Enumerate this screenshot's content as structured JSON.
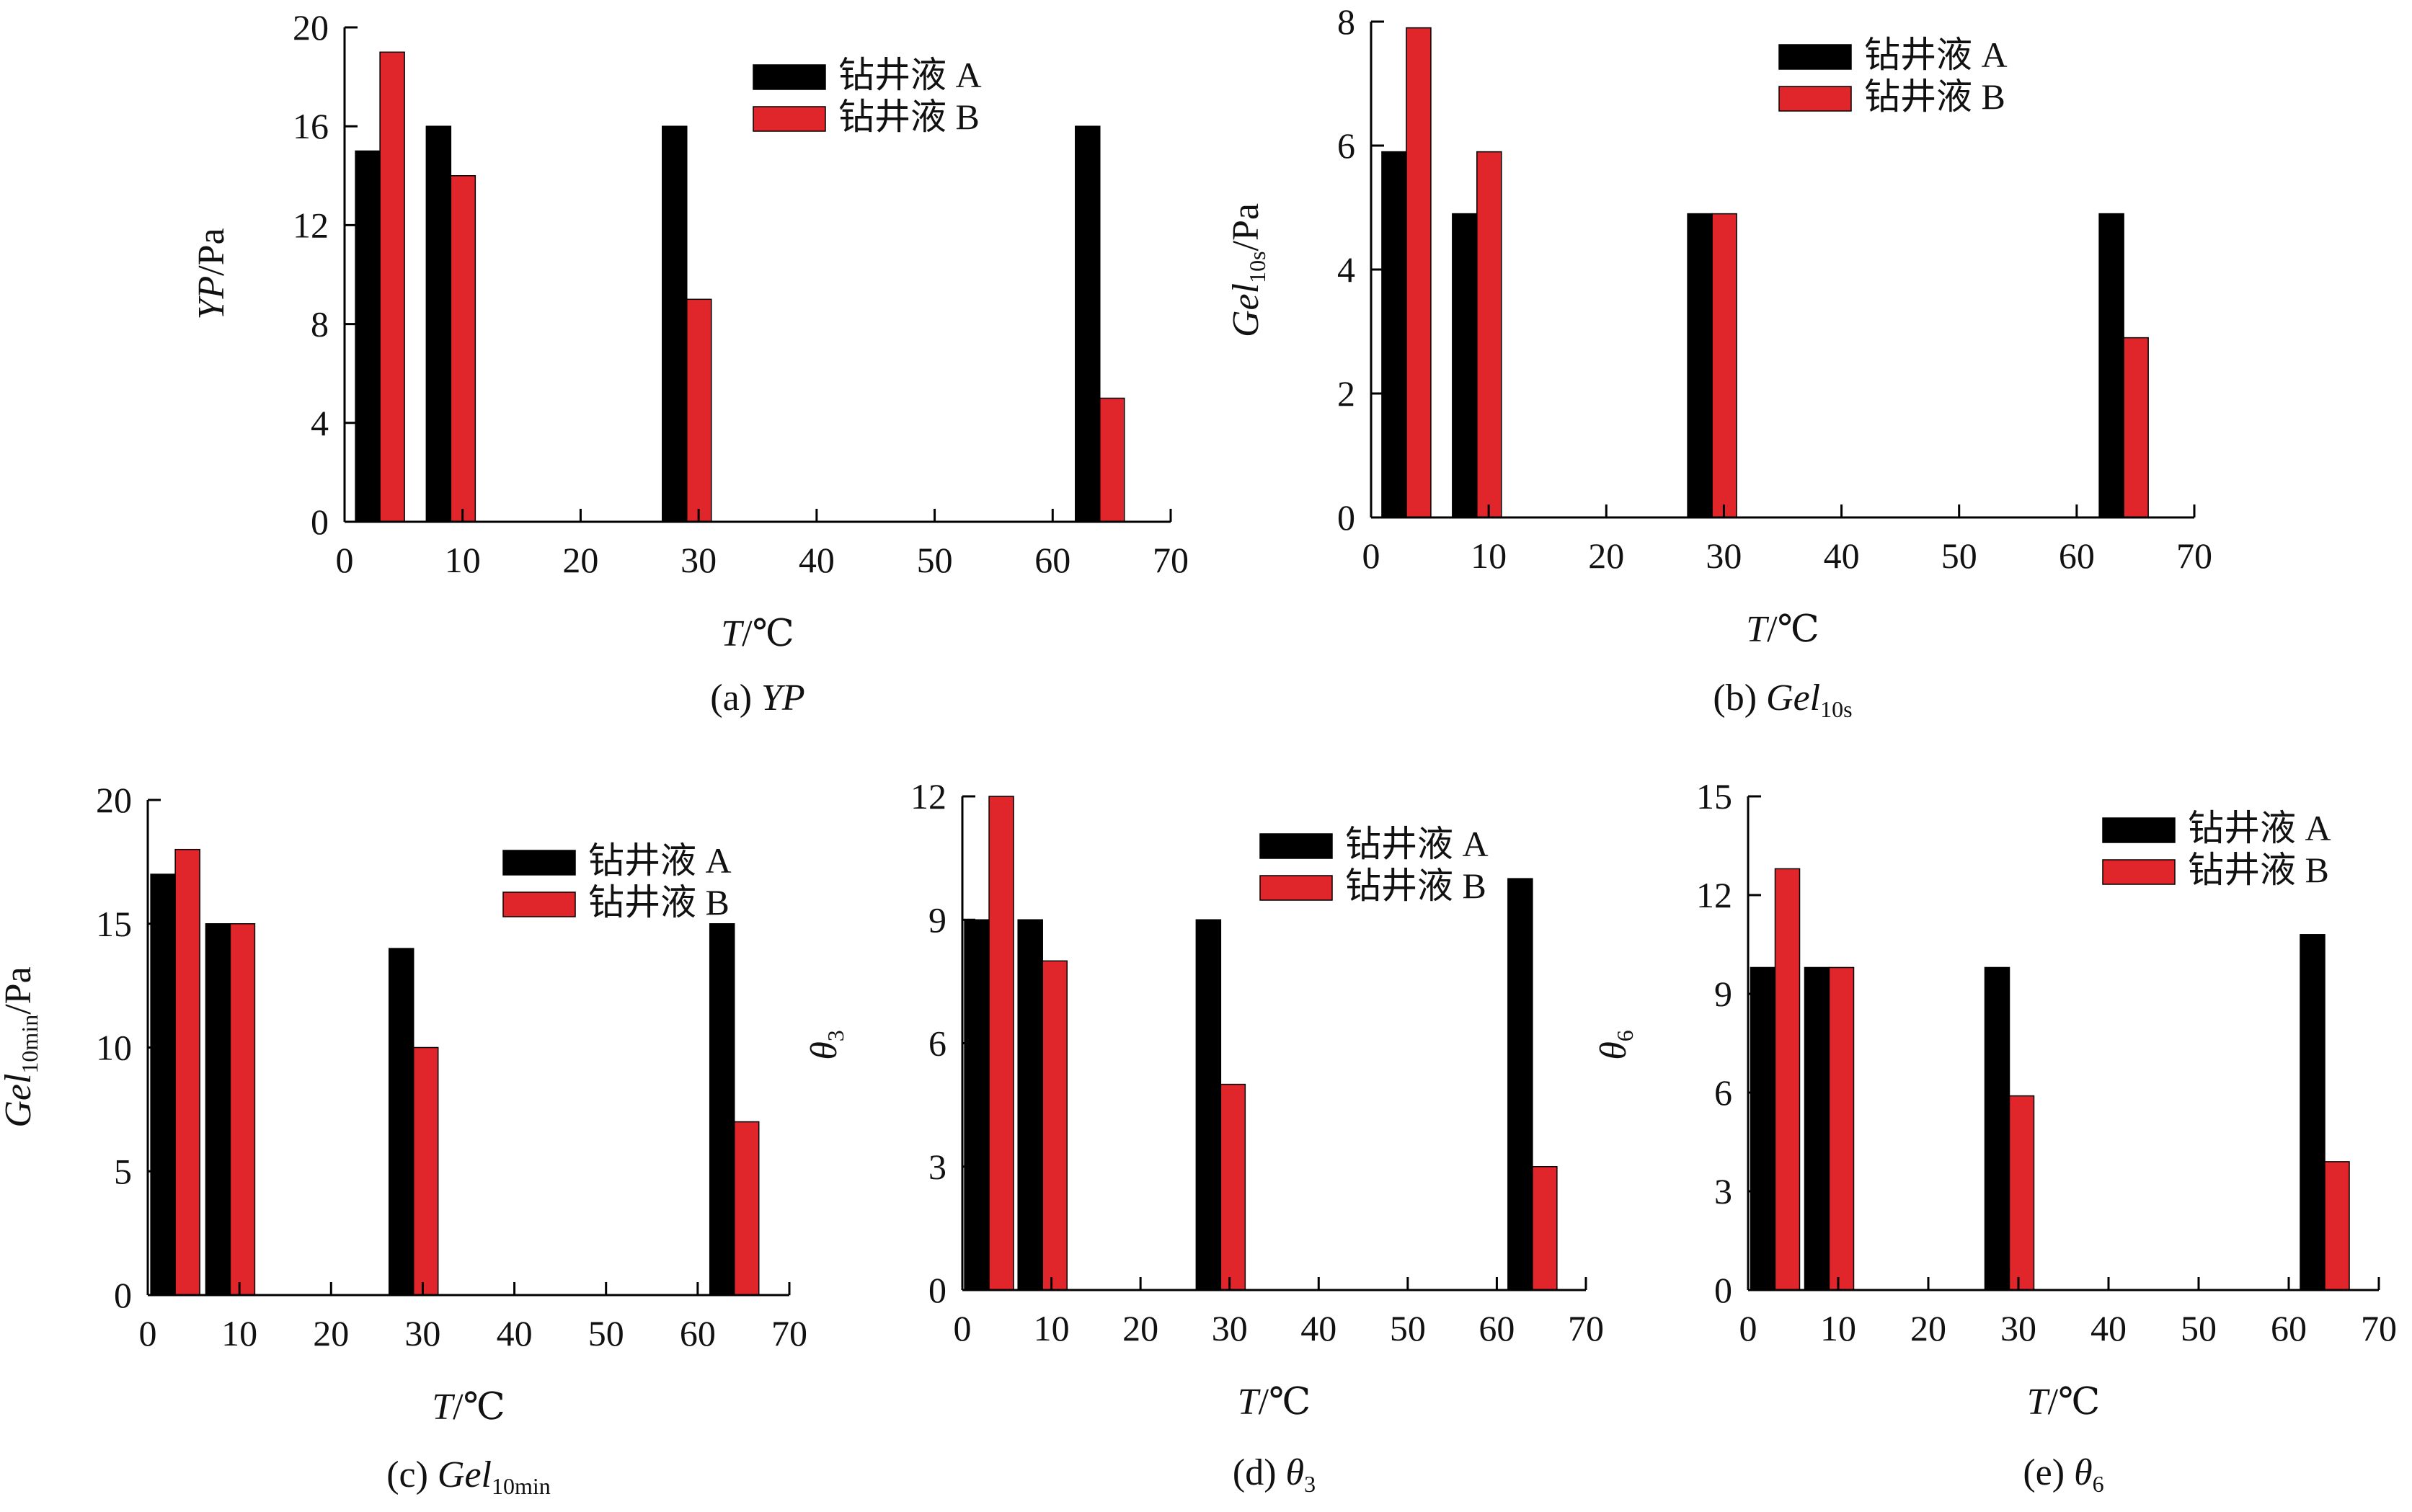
{
  "colors": {
    "series_a": "#000000",
    "series_b": "#e0262b",
    "axis": "#000000"
  },
  "chart_data": [
    {
      "id": "a",
      "type": "bar",
      "caption_prefix": "(a) ",
      "caption_main": "YP",
      "caption_sub": "",
      "ylabel_main": "YP",
      "ylabel_sub": "",
      "ylabel_unit": "/Pa",
      "xlabel_main": "T",
      "xlabel_unit": "/℃",
      "xlim": [
        0,
        70
      ],
      "xticks": [
        0,
        10,
        20,
        30,
        40,
        50,
        60,
        70
      ],
      "ylim": [
        0,
        20
      ],
      "yticks": [
        0,
        4,
        8,
        12,
        16,
        20
      ],
      "x": [
        3,
        9,
        29,
        64
      ],
      "series": [
        {
          "name": "钻井液 A",
          "values": [
            15,
            16,
            16,
            16
          ]
        },
        {
          "name": "钻井液 B",
          "values": [
            19,
            14,
            9,
            5
          ]
        }
      ],
      "legend": "top-right"
    },
    {
      "id": "b",
      "type": "bar",
      "caption_prefix": "(b) ",
      "caption_main": "Gel",
      "caption_sub": "10s",
      "ylabel_main": "Gel",
      "ylabel_sub": "10s",
      "ylabel_unit": "/Pa",
      "xlabel_main": "T",
      "xlabel_unit": "/℃",
      "xlim": [
        0,
        70
      ],
      "xticks": [
        0,
        10,
        20,
        30,
        40,
        50,
        60,
        70
      ],
      "ylim": [
        0,
        8
      ],
      "yticks": [
        0,
        2,
        4,
        6,
        8
      ],
      "x": [
        3,
        9,
        29,
        64
      ],
      "series": [
        {
          "name": "钻井液 A",
          "values": [
            5.9,
            4.9,
            4.9,
            4.9
          ]
        },
        {
          "name": "钻井液 B",
          "values": [
            7.9,
            5.9,
            4.9,
            2.9
          ]
        }
      ],
      "legend": "top-right"
    },
    {
      "id": "c",
      "type": "bar",
      "caption_prefix": "(c) ",
      "caption_main": "Gel",
      "caption_sub": "10min",
      "ylabel_main": "Gel",
      "ylabel_sub": "10min",
      "ylabel_unit": "/Pa",
      "xlabel_main": "T",
      "xlabel_unit": "/℃",
      "xlim": [
        0,
        70
      ],
      "xticks": [
        0,
        10,
        20,
        30,
        40,
        50,
        60,
        70
      ],
      "ylim": [
        0,
        20
      ],
      "yticks": [
        0,
        5,
        10,
        15,
        20
      ],
      "x": [
        3,
        9,
        29,
        64
      ],
      "series": [
        {
          "name": "钻井液 A",
          "values": [
            17,
            15,
            14,
            15
          ]
        },
        {
          "name": "钻井液 B",
          "values": [
            18,
            15,
            10,
            7
          ]
        }
      ],
      "legend": "top-right"
    },
    {
      "id": "d",
      "type": "bar",
      "caption_prefix": "(d) ",
      "caption_main": "θ",
      "caption_sub": "3",
      "ylabel_main": "θ",
      "ylabel_sub": "3",
      "ylabel_unit": "",
      "xlabel_main": "T",
      "xlabel_unit": "/℃",
      "xlim": [
        0,
        70
      ],
      "xticks": [
        0,
        10,
        20,
        30,
        40,
        50,
        60,
        70
      ],
      "ylim": [
        0,
        12
      ],
      "yticks": [
        0,
        3,
        6,
        9,
        12
      ],
      "x": [
        3,
        9,
        29,
        64
      ],
      "series": [
        {
          "name": "钻井液 A",
          "values": [
            9,
            9,
            9,
            10
          ]
        },
        {
          "name": "钻井液 B",
          "values": [
            12,
            8,
            5,
            3
          ]
        }
      ],
      "legend": "top-right"
    },
    {
      "id": "e",
      "type": "bar",
      "caption_prefix": "(e) ",
      "caption_main": "θ",
      "caption_sub": "6",
      "ylabel_main": "θ",
      "ylabel_sub": "6",
      "ylabel_unit": "",
      "xlabel_main": "T",
      "xlabel_unit": "/℃",
      "xlim": [
        0,
        70
      ],
      "xticks": [
        0,
        10,
        20,
        30,
        40,
        50,
        60,
        70
      ],
      "ylim": [
        0,
        15
      ],
      "yticks": [
        0,
        3,
        6,
        9,
        12,
        15
      ],
      "x": [
        3,
        9,
        29,
        64
      ],
      "series": [
        {
          "name": "钻井液 A",
          "values": [
            9.8,
            9.8,
            9.8,
            10.8
          ]
        },
        {
          "name": "钻井液 B",
          "values": [
            12.8,
            9.8,
            5.9,
            3.9
          ]
        }
      ],
      "legend": "top-right"
    }
  ]
}
